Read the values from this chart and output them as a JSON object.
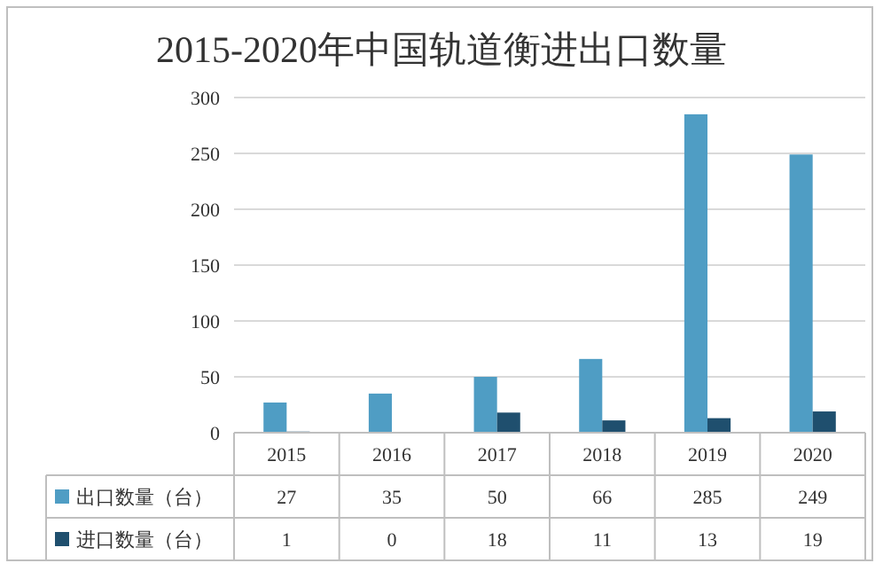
{
  "chart_data": {
    "type": "bar",
    "title": "2015-2020年中国轨道衡进出口数量",
    "categories": [
      "2015",
      "2016",
      "2017",
      "2018",
      "2019",
      "2020"
    ],
    "series": [
      {
        "name": "出口数量（台）",
        "color": "#4f9dc4",
        "values": [
          27,
          35,
          50,
          66,
          285,
          249
        ]
      },
      {
        "name": "进口数量（台）",
        "color": "#1f4f6e",
        "values": [
          1,
          0,
          18,
          11,
          13,
          19
        ]
      }
    ],
    "ylim": [
      0,
      300
    ],
    "yticks": [
      0,
      50,
      100,
      150,
      200,
      250,
      300
    ],
    "grid": "y",
    "data_labels": true,
    "legend": "bottom left"
  }
}
